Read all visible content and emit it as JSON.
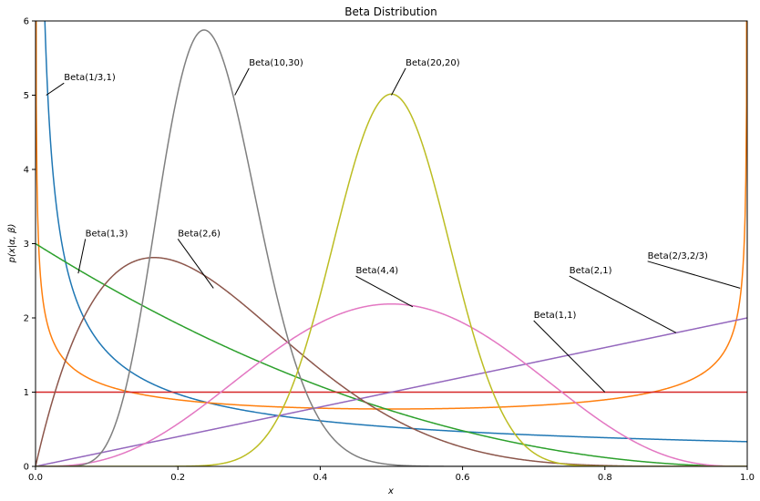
{
  "chart_data": {
    "type": "line",
    "title": "Beta Distribution",
    "xlabel": "x",
    "ylabel": "p(x|α, β)",
    "xlim": [
      0,
      1
    ],
    "ylim": [
      0,
      6
    ],
    "xticks": [
      0.0,
      0.2,
      0.4,
      0.6,
      0.8,
      1.0
    ],
    "xtick_labels": [
      "0.0",
      "0.2",
      "0.4",
      "0.6",
      "0.8",
      "1.0"
    ],
    "yticks": [
      0,
      1,
      2,
      3,
      4,
      5,
      6
    ],
    "ytick_labels": [
      "0",
      "1",
      "2",
      "3",
      "4",
      "5",
      "6"
    ],
    "grid": false,
    "series": [
      {
        "name": "Beta(1/3,1)",
        "alpha": 0.3333333,
        "beta": 1,
        "color": "#1f77b4"
      },
      {
        "name": "Beta(2/3,2/3)",
        "alpha": 0.6666667,
        "beta": 0.6666667,
        "color": "#ff7f0e"
      },
      {
        "name": "Beta(1,3)",
        "alpha": 1,
        "beta": 3,
        "color": "#2ca02c"
      },
      {
        "name": "Beta(1,1)",
        "alpha": 1,
        "beta": 1,
        "color": "#d62728"
      },
      {
        "name": "Beta(2,1)",
        "alpha": 2,
        "beta": 1,
        "color": "#9467bd"
      },
      {
        "name": "Beta(2,6)",
        "alpha": 2,
        "beta": 6,
        "color": "#8c564b"
      },
      {
        "name": "Beta(4,4)",
        "alpha": 4,
        "beta": 4,
        "color": "#e377c2"
      },
      {
        "name": "Beta(10,30)",
        "alpha": 10,
        "beta": 30,
        "color": "#7f7f7f"
      },
      {
        "name": "Beta(20,20)",
        "alpha": 20,
        "beta": 20,
        "color": "#bcbd22"
      }
    ],
    "annotations": [
      {
        "text": "Beta(1/3,1)",
        "x": 0.04,
        "y": 5.2,
        "point_x": 0.015,
        "point_y": 5.0
      },
      {
        "text": "Beta(10,30)",
        "x": 0.3,
        "y": 5.4,
        "point_x": 0.28,
        "point_y": 5.0
      },
      {
        "text": "Beta(20,20)",
        "x": 0.52,
        "y": 5.4,
        "point_x": 0.5,
        "point_y": 5.0
      },
      {
        "text": "Beta(1,3)",
        "x": 0.07,
        "y": 3.1,
        "point_x": 0.06,
        "point_y": 2.6
      },
      {
        "text": "Beta(2,6)",
        "x": 0.2,
        "y": 3.1,
        "point_x": 0.25,
        "point_y": 2.4
      },
      {
        "text": "Beta(4,4)",
        "x": 0.45,
        "y": 2.6,
        "point_x": 0.53,
        "point_y": 2.15
      },
      {
        "text": "Beta(2,1)",
        "x": 0.75,
        "y": 2.6,
        "point_x": 0.9,
        "point_y": 1.8
      },
      {
        "text": "Beta(2/3,2/3)",
        "x": 0.86,
        "y": 2.8,
        "point_x": 0.99,
        "point_y": 2.4
      },
      {
        "text": "Beta(1,1)",
        "x": 0.7,
        "y": 2.0,
        "point_x": 0.8,
        "point_y": 1.0
      }
    ]
  }
}
